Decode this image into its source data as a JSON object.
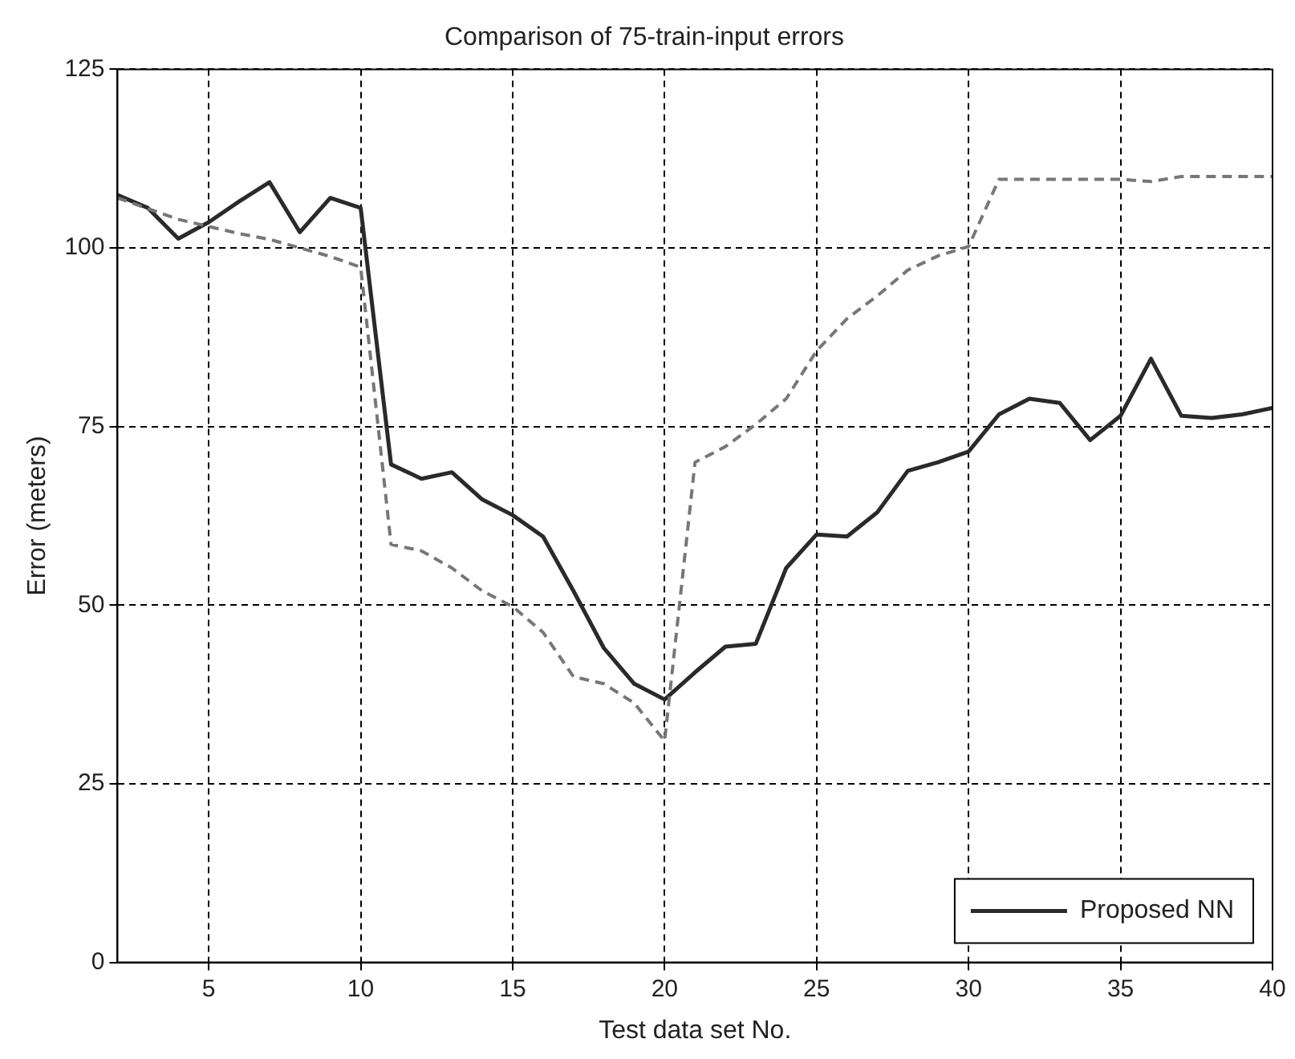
{
  "chart_data": {
    "type": "line",
    "title": "Comparison of 75-train-input errors",
    "xlabel": "Test data set No.",
    "ylabel": "Error (meters)",
    "x": [
      2,
      3,
      4,
      5,
      6,
      7,
      8,
      9,
      10,
      11,
      12,
      13,
      14,
      15,
      16,
      17,
      18,
      19,
      20,
      21,
      22,
      23,
      24,
      25,
      26,
      27,
      28,
      29,
      30,
      31,
      32,
      33,
      34,
      35,
      36,
      37,
      38,
      39,
      40
    ],
    "series": [
      {
        "color": "#777777",
        "line_style": "dashed",
        "values": [
          107,
          105.5,
          104,
          103,
          102,
          101.2,
          100,
          98.8,
          97.3,
          58.5,
          57.6,
          55.2,
          52,
          49.8,
          46.2,
          40,
          39,
          36.3,
          31,
          70,
          72.2,
          75.3,
          78.9,
          85.6,
          90.1,
          93.3,
          96.9,
          98.9,
          100.2,
          109.6,
          109.6,
          109.6,
          109.6,
          109.6,
          109.3,
          110,
          110,
          110,
          110
        ]
      },
      {
        "name": "Proposed NN",
        "color": "#2a2a2a",
        "line_style": "solid",
        "values": [
          107.4,
          105.6,
          101.3,
          103.6,
          106.5,
          109.2,
          102.2,
          107,
          105.6,
          69.7,
          67.7,
          68.6,
          64.8,
          62.6,
          59.6,
          52,
          44,
          39,
          36.8,
          40.6,
          44.2,
          44.6,
          55.2,
          59.9,
          59.6,
          63,
          68.8,
          70,
          71.5,
          76.7,
          78.9,
          78.3,
          73.1,
          76.5,
          84.5,
          76.5,
          76.2,
          76.7,
          77.6
        ]
      }
    ],
    "xlim": [
      2,
      40
    ],
    "xticks": [
      5,
      10,
      15,
      20,
      25,
      30,
      35,
      40
    ],
    "ylim": [
      0,
      125
    ],
    "yticks": [
      0,
      25,
      50,
      75,
      100,
      125
    ],
    "grid": true,
    "legend": "bottom right",
    "marker": "none"
  }
}
